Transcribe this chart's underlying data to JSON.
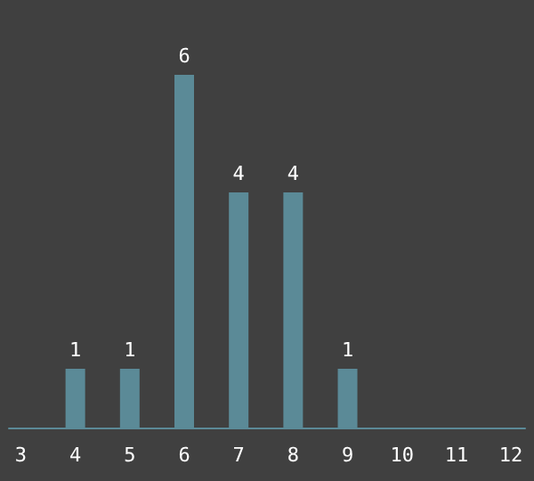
{
  "chart_data": {
    "type": "bar",
    "x": [
      4,
      5,
      6,
      7,
      8,
      9
    ],
    "values": [
      1,
      1,
      6,
      4,
      4,
      1
    ],
    "color": "#5b8a97",
    "xlim": [
      2.78,
      12.26
    ],
    "xticks": [
      3,
      4,
      5,
      6,
      7,
      8,
      9,
      10,
      11,
      12
    ],
    "data_labels": true,
    "tick_labels": "x",
    "grid": false
  }
}
